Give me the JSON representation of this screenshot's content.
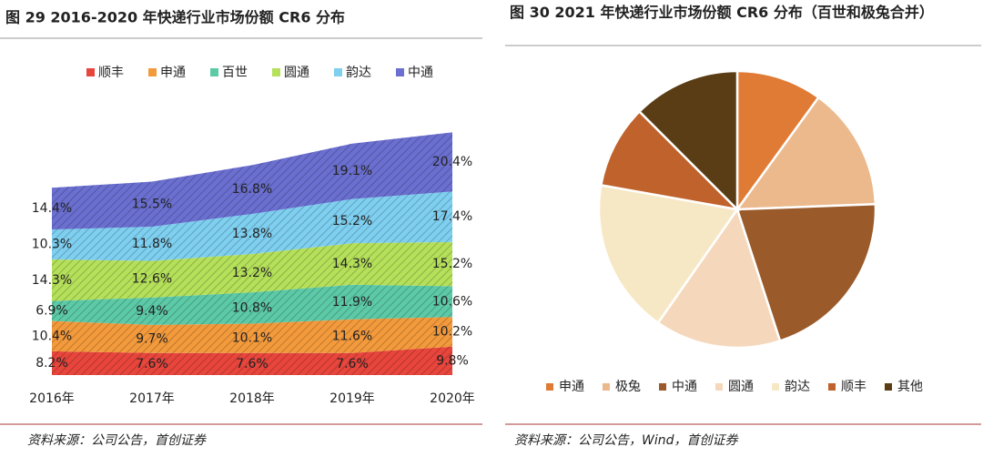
{
  "chart_data": [
    {
      "type": "stacked-area",
      "title": "图 29 2016-2020 年快递行业市场份额 CR6 分布",
      "source": "资料来源：公司公告，首创证券",
      "categories": [
        "2016年",
        "2017年",
        "2018年",
        "2019年",
        "2020年"
      ],
      "ylim": [
        0,
        100
      ],
      "legend": "top",
      "series": [
        {
          "name": "顺丰",
          "color": "#e8453c",
          "values": [
            8.2,
            7.6,
            7.6,
            7.6,
            9.8
          ],
          "value_labels": [
            "8.2%",
            "7.6%",
            "7.6%",
            "7.6%",
            "9.8%"
          ]
        },
        {
          "name": "申通",
          "color": "#f39a3c",
          "values": [
            10.4,
            9.7,
            10.1,
            11.6,
            10.2
          ],
          "value_labels": [
            "10.4%",
            "9.7%",
            "10.1%",
            "11.6%",
            "10.2%"
          ]
        },
        {
          "name": "百世",
          "color": "#5cc9a7",
          "values": [
            6.9,
            9.4,
            10.8,
            11.9,
            10.6
          ],
          "value_labels": [
            "6.9%",
            "9.4%",
            "10.8%",
            "11.9%",
            "10.6%"
          ]
        },
        {
          "name": "圆通",
          "color": "#b5e05a",
          "values": [
            14.3,
            12.6,
            13.2,
            14.3,
            15.2
          ],
          "value_labels": [
            "14.3%",
            "12.6%",
            "13.2%",
            "14.3%",
            "15.2%"
          ]
        },
        {
          "name": "韵达",
          "color": "#7ecff0",
          "values": [
            10.3,
            11.8,
            13.8,
            15.2,
            17.4
          ],
          "value_labels": [
            "10.3%",
            "11.8%",
            "13.8%",
            "15.2%",
            "17.4%"
          ]
        },
        {
          "name": "中通",
          "color": "#6a6fd0",
          "values": [
            14.4,
            15.5,
            16.8,
            19.1,
            20.4
          ],
          "value_labels": [
            "14.4%",
            "15.5%",
            "16.8%",
            "19.1%",
            "20.4%"
          ]
        }
      ]
    },
    {
      "type": "pie",
      "title": "图 30 2021 年快递行业市场份额 CR6 分布（百世和极兔合并）",
      "source": "资料来源：公司公告，Wind，首创证券",
      "categories": [
        "申通",
        "极兔",
        "中通",
        "圆通",
        "韵达",
        "顺丰",
        "其他"
      ],
      "values": [
        10,
        14.4,
        20.6,
        14.7,
        18.1,
        9.7,
        12.5
      ],
      "colors": [
        "#e07b35",
        "#ebb98c",
        "#9a5a2a",
        "#f5d8bb",
        "#f7e8c5",
        "#c0622b",
        "#5a3d15"
      ],
      "legend": "bottom"
    }
  ]
}
